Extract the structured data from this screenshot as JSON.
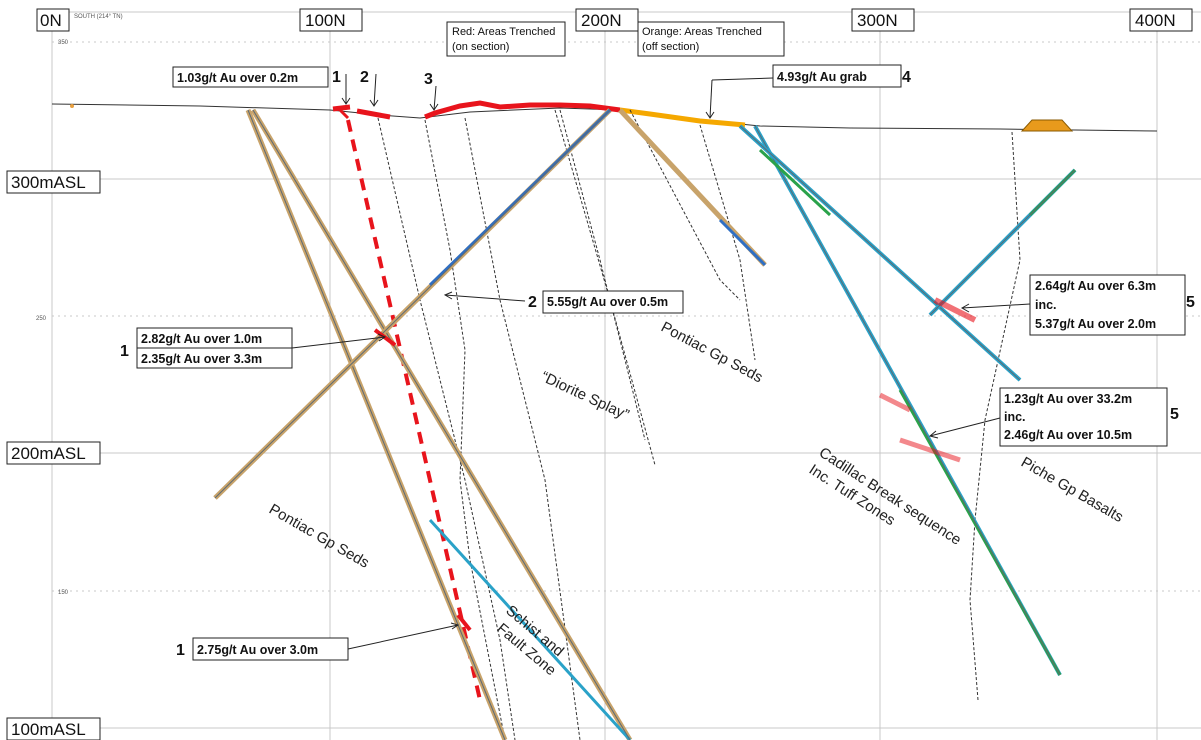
{
  "section": {
    "orientation_label": "SOUTH (214° TN)"
  },
  "northing_labels": [
    "0N",
    "100N",
    "200N",
    "300N",
    "400N"
  ],
  "elevation_labels": [
    "300mASL",
    "200mASL",
    "100mASL"
  ],
  "small_elevation_ticks": [
    "350",
    "250",
    "150"
  ],
  "legend": {
    "red": "Red: Areas Trenched (on section)",
    "red_line1": "Red: Areas Trenched",
    "red_line2": "(on section)",
    "orange_line1": "Orange: Areas Trenched",
    "orange_line2": "(off section)"
  },
  "trench_markers": [
    "1",
    "2",
    "3"
  ],
  "assays": {
    "a_top": "1.03g/t Au over 0.2m",
    "a_grab_num": "4",
    "a_grab": "4.93g/t Au grab",
    "a_555_num": "2",
    "a_555": "5.55g/t Au over 0.5m",
    "a_282_num": "1",
    "a_282": "2.82g/t Au over 1.0m",
    "a_235": "2.35g/t Au over 3.3m",
    "a_264_num": "5",
    "a_264": "2.64g/t Au over 6.3m",
    "a_264_inc": "inc.",
    "a_537": "5.37g/t Au over 2.0m",
    "a_123_num": "5",
    "a_123": "1.23g/t Au over 33.2m",
    "a_123_inc": "inc.",
    "a_246": "2.46g/t Au over 10.5m",
    "a_275_num": "1",
    "a_275": "2.75g/t Au over 3.0m"
  },
  "units": {
    "pontiac_right": "Pontiac Gp Seds",
    "diorite": "“Diorite Splay”",
    "pontiac_left": "Pontiac Gp Seds",
    "schist_line1": "Schist and",
    "schist_line2": "Fault Zone",
    "cadillac_line1": "Cadillac Break sequence",
    "cadillac_line2": "Inc. Tuff Zones",
    "piche": "Piche Gp Basalts"
  },
  "colors": {
    "trench_on_section": "#e8141c",
    "trench_off_section": "#f5a800",
    "drill_hole_trace": "#c8a36a",
    "high_grade": "#e8141c"
  }
}
